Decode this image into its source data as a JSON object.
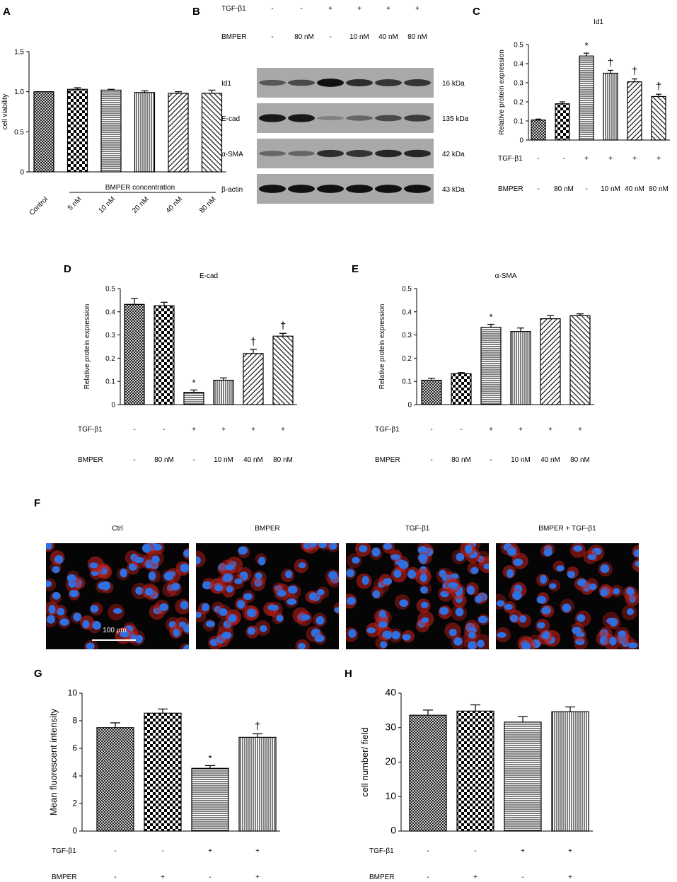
{
  "panels": {
    "A": "A",
    "B": "B",
    "C": "C",
    "D": "D",
    "E": "E",
    "F": "F",
    "G": "G",
    "H": "H"
  },
  "conditions": {
    "tgf_label": "TGF-β1",
    "bmper_label": "BMPER",
    "tgf_row6": [
      "-",
      "-",
      "+",
      "+",
      "+",
      "+"
    ],
    "bmper_row6": [
      "-",
      "80 nM",
      "-",
      "10 nM",
      "40 nM",
      "80 nM"
    ],
    "tgf_row4": [
      "-",
      "-",
      "+",
      "+"
    ],
    "bmper_row4": [
      "-",
      "+",
      "-",
      "+"
    ]
  },
  "western": {
    "bands": [
      {
        "name": "Id1",
        "kda": "16 kDa"
      },
      {
        "name": "E-cad",
        "kda": "135 kDa"
      },
      {
        "name": "α-SMA",
        "kda": "42 kDa"
      },
      {
        "name": "β-actin",
        "kda": "43 kDa"
      }
    ],
    "band_intensity": {
      "Id1": [
        0.45,
        0.55,
        0.95,
        0.75,
        0.7,
        0.7
      ],
      "E-cad": [
        0.9,
        0.9,
        0.15,
        0.35,
        0.55,
        0.65
      ],
      "α-SMA": [
        0.35,
        0.35,
        0.75,
        0.7,
        0.8,
        0.8
      ],
      "β-actin": [
        0.95,
        0.95,
        0.95,
        0.95,
        0.95,
        0.95
      ]
    }
  },
  "microscopy": {
    "titles": [
      "Ctrl",
      "BMPER",
      "TGF-β1",
      "BMPER + TGF-β1"
    ],
    "scale_bar": "100 μm",
    "nucleus_color": "#2f6fe0",
    "stain_color": "#c0201a"
  },
  "chart_data": [
    {
      "id": "A",
      "type": "bar",
      "ylabel": "cell viability",
      "ylim": [
        0,
        1.5
      ],
      "yticks": [
        0,
        0.5,
        1.0,
        1.5
      ],
      "categories": [
        "Control",
        "5 nM",
        "10 nM",
        "20 nM",
        "40 nM",
        "80 nM"
      ],
      "values": [
        1.0,
        1.03,
        1.02,
        0.99,
        0.98,
        0.98
      ],
      "errors": [
        0.0,
        0.02,
        0.01,
        0.02,
        0.02,
        0.04
      ],
      "group_label": "BMPER concentration",
      "patterns": [
        "cross",
        "checker",
        "hlines",
        "vlines",
        "diagR",
        "diagL"
      ]
    },
    {
      "id": "C",
      "type": "bar",
      "title": "Id1",
      "ylabel": "Relative protein expression",
      "ylim": [
        0,
        0.5
      ],
      "yticks": [
        0,
        0.1,
        0.2,
        0.3,
        0.4,
        0.5
      ],
      "values": [
        0.105,
        0.19,
        0.44,
        0.35,
        0.305,
        0.228
      ],
      "errors": [
        0.005,
        0.01,
        0.015,
        0.015,
        0.015,
        0.012
      ],
      "annotations": [
        "",
        "",
        "*",
        "†",
        "†",
        "†"
      ],
      "patterns": [
        "cross",
        "checker",
        "hlines",
        "vlines",
        "diagR",
        "diagL"
      ]
    },
    {
      "id": "D",
      "type": "bar",
      "title": "E-cad",
      "ylabel": "Relative protein expression",
      "ylim": [
        0,
        0.5
      ],
      "yticks": [
        0,
        0.1,
        0.2,
        0.3,
        0.4,
        0.5
      ],
      "values": [
        0.432,
        0.426,
        0.053,
        0.105,
        0.22,
        0.295
      ],
      "errors": [
        0.025,
        0.015,
        0.01,
        0.01,
        0.018,
        0.012
      ],
      "annotations": [
        "",
        "",
        "*",
        "",
        "†",
        "†"
      ],
      "patterns": [
        "cross",
        "checker",
        "hlines",
        "vlines",
        "diagR",
        "diagL"
      ]
    },
    {
      "id": "E",
      "type": "bar",
      "title": "α-SMA",
      "ylabel": "Relative protein expression",
      "ylim": [
        0,
        0.5
      ],
      "yticks": [
        0,
        0.1,
        0.2,
        0.3,
        0.4,
        0.5
      ],
      "values": [
        0.105,
        0.133,
        0.333,
        0.315,
        0.37,
        0.383
      ],
      "errors": [
        0.008,
        0.005,
        0.013,
        0.015,
        0.013,
        0.008
      ],
      "annotations": [
        "",
        "",
        "*",
        "",
        "",
        ""
      ],
      "patterns": [
        "cross",
        "checker",
        "hlines",
        "vlines",
        "diagR",
        "diagL"
      ]
    },
    {
      "id": "G",
      "type": "bar",
      "ylabel": "Mean fluorescent intensity",
      "ylim": [
        0,
        10
      ],
      "yticks": [
        0,
        2,
        4,
        6,
        8,
        10
      ],
      "values": [
        7.5,
        8.55,
        4.55,
        6.8
      ],
      "errors": [
        0.35,
        0.3,
        0.2,
        0.25
      ],
      "annotations": [
        "",
        "",
        "*",
        "†"
      ],
      "patterns": [
        "cross",
        "checker",
        "hlines",
        "vlines"
      ]
    },
    {
      "id": "H",
      "type": "bar",
      "ylabel": "cell number/ field",
      "ylim": [
        0,
        40
      ],
      "yticks": [
        0,
        10,
        20,
        30,
        40
      ],
      "values": [
        33.6,
        34.8,
        31.6,
        34.6
      ],
      "errors": [
        1.5,
        1.8,
        1.6,
        1.4
      ],
      "annotations": [
        "",
        "",
        "",
        ""
      ],
      "patterns": [
        "cross",
        "checker",
        "hlines",
        "vlines"
      ]
    }
  ]
}
